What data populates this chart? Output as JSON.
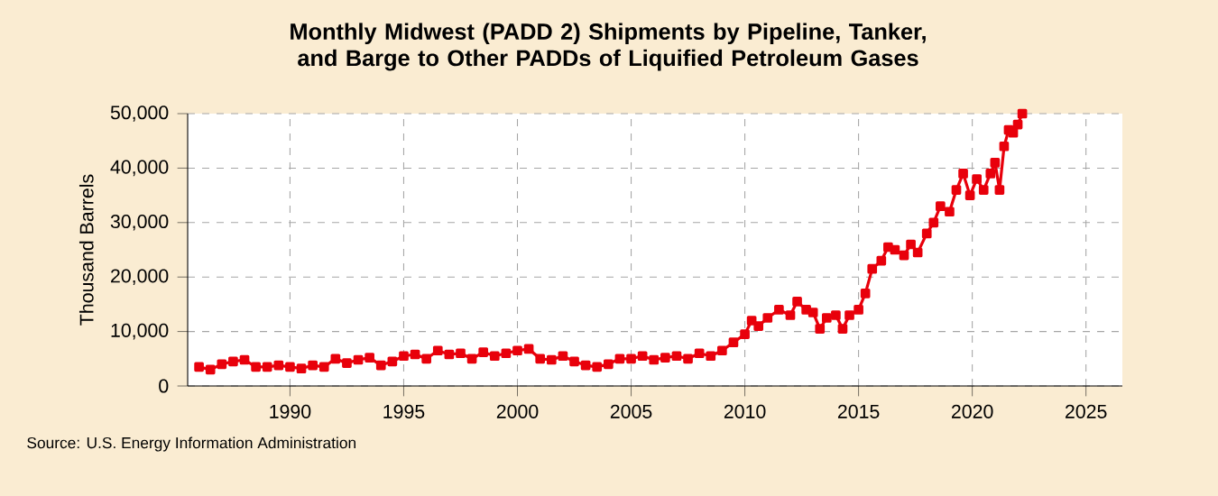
{
  "chart_data": {
    "type": "line",
    "title": "Monthly Midwest (PADD 2) Shipments by Pipeline, Tanker, and Barge to Other PADDs of Liquified Petroleum Gases",
    "ylabel": "Thousand Barrels",
    "annotations": [
      "Source: U.S. Energy Information Administration"
    ],
    "series": [
      {
        "color": "#e8000b",
        "x": [
          1986.0,
          1986.5,
          1987.0,
          1987.5,
          1988.0,
          1988.5,
          1989.0,
          1989.5,
          1990.0,
          1990.5,
          1991.0,
          1991.5,
          1992.0,
          1992.5,
          1993.0,
          1993.5,
          1994.0,
          1994.5,
          1995.0,
          1995.5,
          1996.0,
          1996.5,
          1997.0,
          1997.5,
          1998.0,
          1998.5,
          1999.0,
          1999.5,
          2000.0,
          2000.5,
          2001.0,
          2001.5,
          2002.0,
          2002.5,
          2003.0,
          2003.5,
          2004.0,
          2004.5,
          2005.0,
          2005.5,
          2006.0,
          2006.5,
          2007.0,
          2007.5,
          2008.0,
          2008.5,
          2009.0,
          2009.5,
          2010.0,
          2010.3,
          2010.6,
          2011.0,
          2011.5,
          2012.0,
          2012.3,
          2012.7,
          2013.0,
          2013.3,
          2013.6,
          2014.0,
          2014.3,
          2014.6,
          2015.0,
          2015.3,
          2015.6,
          2016.0,
          2016.3,
          2016.6,
          2017.0,
          2017.3,
          2017.6,
          2018.0,
          2018.3,
          2018.6,
          2019.0,
          2019.3,
          2019.6,
          2019.9,
          2020.2,
          2020.5,
          2020.8,
          2021.0,
          2021.2,
          2021.4,
          2021.6,
          2021.8,
          2022.0,
          2022.2
        ],
        "values": [
          3500,
          3000,
          4000,
          4500,
          4800,
          3500,
          3500,
          3800,
          3500,
          3200,
          3800,
          3500,
          5000,
          4200,
          4800,
          5200,
          3800,
          4500,
          5500,
          5800,
          5000,
          6500,
          5800,
          6000,
          5000,
          6200,
          5500,
          6000,
          6500,
          6800,
          5000,
          4800,
          5500,
          4500,
          3800,
          3500,
          4000,
          5000,
          5000,
          5500,
          4800,
          5200,
          5500,
          5000,
          6000,
          5500,
          6500,
          8000,
          9500,
          12000,
          11000,
          12500,
          14000,
          13000,
          15500,
          14000,
          13500,
          10500,
          12500,
          13000,
          10500,
          13000,
          14000,
          17000,
          21500,
          23000,
          25500,
          25000,
          24000,
          26000,
          24500,
          28000,
          30000,
          33000,
          32000,
          36000,
          39000,
          35000,
          38000,
          36000,
          39000,
          41000,
          36000,
          44000,
          47000,
          46500,
          48000,
          50000
        ]
      }
    ],
    "xlim": [
      1985.5,
      2026.6
    ],
    "xticks": [
      1990,
      1995,
      2000,
      2005,
      2010,
      2015,
      2020,
      2025
    ],
    "ylim": [
      0,
      50000
    ],
    "yticks": [
      {
        "value": 0,
        "label": "0"
      },
      {
        "value": 10000,
        "label": "10,000"
      },
      {
        "value": 20000,
        "label": "20,000"
      },
      {
        "value": 30000,
        "label": "30,000"
      },
      {
        "value": 40000,
        "label": "40,000"
      },
      {
        "value": 50000,
        "label": "50,000"
      }
    ],
    "grid": true,
    "marker": "square",
    "line_style": "solid"
  }
}
